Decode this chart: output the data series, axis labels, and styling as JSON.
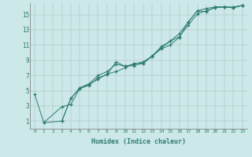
{
  "xlabel": "Humidex (Indice chaleur)",
  "bg_color": "#cce8e8",
  "line_color": "#2d7d6e",
  "xlim": [
    -0.5,
    23.5
  ],
  "ylim": [
    0,
    16.5
  ],
  "xtick_labels": [
    "0",
    "1",
    "2",
    "3",
    "4",
    "5",
    "6",
    "7",
    "8",
    "9",
    "10",
    "11",
    "12",
    "13",
    "14",
    "15",
    "16",
    "17",
    "18",
    "19",
    "20",
    "21",
    "22",
    "23"
  ],
  "xtick_vals": [
    0,
    1,
    2,
    3,
    4,
    5,
    6,
    7,
    8,
    9,
    10,
    11,
    12,
    13,
    14,
    15,
    16,
    17,
    18,
    19,
    20,
    21,
    22,
    23
  ],
  "ytick_vals": [
    1,
    3,
    5,
    7,
    9,
    11,
    13,
    15
  ],
  "series1_x": [
    0,
    1,
    3,
    4,
    5,
    6,
    7,
    8,
    9,
    10,
    11,
    12,
    13,
    14,
    15,
    16,
    17,
    18,
    19,
    20,
    21,
    22,
    23
  ],
  "series1_y": [
    4.5,
    0.8,
    1.0,
    4.0,
    5.4,
    5.9,
    7.0,
    7.5,
    8.5,
    8.2,
    8.3,
    8.6,
    9.5,
    10.5,
    11.0,
    12.0,
    14.0,
    15.5,
    15.8,
    16.0,
    16.0,
    15.9,
    16.2
  ],
  "series2_x": [
    1,
    3,
    4,
    5,
    6,
    7,
    8,
    9,
    10,
    11,
    12,
    13,
    14,
    15,
    16,
    17,
    18,
    19,
    20,
    21,
    22,
    23
  ],
  "series2_y": [
    0.8,
    2.9,
    3.2,
    5.3,
    5.8,
    6.5,
    7.2,
    7.5,
    8.0,
    8.6,
    8.6,
    9.6,
    10.6,
    11.5,
    12.1,
    13.6,
    15.1,
    15.5,
    15.9,
    16.0,
    15.9,
    16.2
  ],
  "series3_x": [
    3,
    4,
    5,
    6,
    7,
    8,
    9,
    10,
    11,
    12,
    13,
    14,
    15,
    16,
    17,
    18,
    19,
    20,
    21,
    22,
    23
  ],
  "series3_y": [
    1.0,
    4.0,
    5.3,
    5.7,
    6.7,
    7.1,
    8.8,
    8.2,
    8.5,
    8.8,
    9.5,
    10.8,
    11.5,
    12.5,
    14.0,
    15.5,
    15.4,
    16.0,
    16.0,
    16.0,
    16.2
  ]
}
